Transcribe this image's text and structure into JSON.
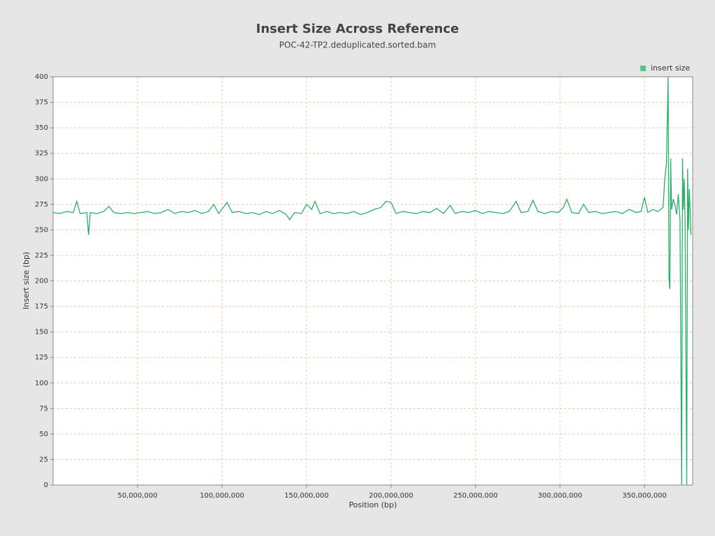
{
  "chart_data": {
    "type": "line",
    "title": "Insert Size Across Reference",
    "subtitle": "POC-42-TP2.deduplicated.sorted.bam",
    "x_label": "Position (bp)",
    "y_label": "Insert size (bp)",
    "legend": "top-right",
    "grid": true,
    "xlim": [
      0,
      378500000
    ],
    "ylim": [
      0,
      400
    ],
    "xticks": [
      {
        "value": 50000000,
        "label": "50,000,000"
      },
      {
        "value": 100000000,
        "label": "100,000,000"
      },
      {
        "value": 150000000,
        "label": "150,000,000"
      },
      {
        "value": 200000000,
        "label": "200,000,000"
      },
      {
        "value": 250000000,
        "label": "250,000,000"
      },
      {
        "value": 300000000,
        "label": "300,000,000"
      },
      {
        "value": 350000000,
        "label": "350,000,000"
      }
    ],
    "yticks": [
      0,
      25,
      50,
      75,
      100,
      125,
      150,
      175,
      200,
      225,
      250,
      275,
      300,
      325,
      350,
      375,
      400
    ],
    "x": [
      0,
      4000000,
      8000000,
      12000000,
      14000000,
      16000000,
      20000000,
      21000000,
      22000000,
      26000000,
      30000000,
      33000000,
      36000000,
      40000000,
      44000000,
      48000000,
      52000000,
      56000000,
      60000000,
      64000000,
      68000000,
      72000000,
      76000000,
      80000000,
      84000000,
      88000000,
      92000000,
      95000000,
      98000000,
      103000000,
      106000000,
      110000000,
      114000000,
      118000000,
      122000000,
      126000000,
      130000000,
      134000000,
      138000000,
      140000000,
      143000000,
      147000000,
      150000000,
      153000000,
      155000000,
      158000000,
      162000000,
      166000000,
      170000000,
      174000000,
      178000000,
      182000000,
      186000000,
      190000000,
      194000000,
      197000000,
      200000000,
      203000000,
      207000000,
      211000000,
      215000000,
      219000000,
      223000000,
      227000000,
      231000000,
      235000000,
      238000000,
      242000000,
      246000000,
      250000000,
      254000000,
      258000000,
      262000000,
      266000000,
      270000000,
      274000000,
      277000000,
      281000000,
      284000000,
      287000000,
      291000000,
      295000000,
      299000000,
      302000000,
      304000000,
      307000000,
      311000000,
      314000000,
      317000000,
      321000000,
      325000000,
      329000000,
      333000000,
      337000000,
      341000000,
      345000000,
      348000000,
      350000000,
      352000000,
      355000000,
      358000000,
      361000000,
      362000000,
      363000000,
      364000000,
      364500000,
      365000000,
      365500000,
      366000000,
      367000000,
      368000000,
      369000000,
      370000000,
      371000000,
      372000000,
      372500000,
      373000000,
      373500000,
      374000000,
      375000000,
      375500000,
      376000000,
      376500000,
      377000000,
      377500000
    ],
    "series": [
      {
        "name": "insert size",
        "color": "#27b06a",
        "values": [
          267,
          266,
          268,
          267,
          278,
          266,
          267,
          245,
          267,
          266,
          268,
          273,
          267,
          266,
          267,
          266,
          267,
          268,
          266,
          267,
          270,
          266,
          268,
          267,
          269,
          266,
          268,
          275,
          266,
          277,
          267,
          268,
          266,
          267,
          265,
          268,
          266,
          269,
          265,
          260,
          267,
          266,
          275,
          270,
          278,
          266,
          268,
          266,
          267,
          266,
          268,
          265,
          267,
          270,
          272,
          278,
          277,
          266,
          268,
          267,
          266,
          268,
          267,
          271,
          266,
          274,
          266,
          268,
          267,
          269,
          266,
          268,
          267,
          266,
          268,
          278,
          267,
          268,
          279,
          268,
          266,
          268,
          267,
          272,
          280,
          267,
          266,
          275,
          267,
          268,
          266,
          267,
          268,
          266,
          270,
          267,
          268,
          282,
          267,
          270,
          268,
          272,
          300,
          315,
          400,
          202,
          192,
          320,
          270,
          280,
          275,
          265,
          285,
          260,
          0,
          320,
          270,
          300,
          260,
          0,
          310,
          250,
          290,
          270,
          245
        ]
      }
    ]
  }
}
